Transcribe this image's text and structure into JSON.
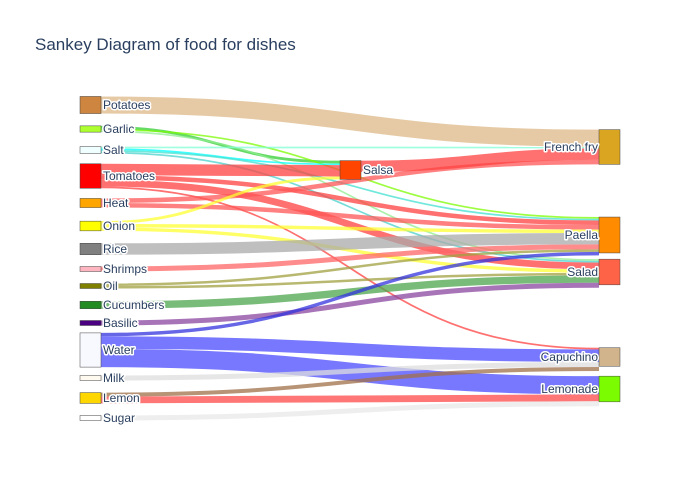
{
  "chart_data": {
    "type": "sankey",
    "title": "Sankey Diagram of food for dishes",
    "nodes": [
      {
        "id": "potatoes",
        "label": "Potatoes",
        "color": "#CD853F"
      },
      {
        "id": "garlic",
        "label": "Garlic",
        "color": "#ADFF2F"
      },
      {
        "id": "salt",
        "label": "Salt",
        "color": "#F0FFFF"
      },
      {
        "id": "tomatoes",
        "label": "Tomatoes",
        "color": "#FF0000"
      },
      {
        "id": "heat",
        "label": "Heat",
        "color": "#FFA500"
      },
      {
        "id": "onion",
        "label": "Onion",
        "color": "#FFFF00"
      },
      {
        "id": "rice",
        "label": "Rice",
        "color": "#808080"
      },
      {
        "id": "shrimps",
        "label": "Shrimps",
        "color": "#FFB6C1"
      },
      {
        "id": "oil",
        "label": "Oil",
        "color": "#808000"
      },
      {
        "id": "cucumbers",
        "label": "Cucumbers",
        "color": "#228B22"
      },
      {
        "id": "basilic",
        "label": "Basilic",
        "color": "#4B0082"
      },
      {
        "id": "water",
        "label": "Water",
        "color": "#F8F8FF"
      },
      {
        "id": "milk",
        "label": "Milk",
        "color": "#FFFAF0"
      },
      {
        "id": "lemon",
        "label": "Lemon",
        "color": "#FFD700"
      },
      {
        "id": "sugar",
        "label": "Sugar",
        "color": "#FFFFFF"
      },
      {
        "id": "salsa",
        "label": "Salsa",
        "color": "#FF4500"
      },
      {
        "id": "frenchfry",
        "label": "French fry",
        "color": "#DAA520"
      },
      {
        "id": "paella",
        "label": "Paella",
        "color": "#FF8C00"
      },
      {
        "id": "salad",
        "label": "Salad",
        "color": "#FF6347"
      },
      {
        "id": "capuchino",
        "label": "Capuchino",
        "color": "#D2B48C"
      },
      {
        "id": "lemonade",
        "label": "Lemonade",
        "color": "#7CFC00"
      }
    ],
    "links": [
      {
        "source": "potatoes",
        "target": "frenchfry",
        "value": 3,
        "color": "#DEB887"
      },
      {
        "source": "garlic",
        "target": "salsa",
        "value": 0.5,
        "color": "#32CD32"
      },
      {
        "source": "garlic",
        "target": "paella",
        "value": 0.3,
        "color": "#7CFC00"
      },
      {
        "source": "garlic",
        "target": "salad",
        "value": 0.3,
        "color": "#90EE90"
      },
      {
        "source": "salt",
        "target": "frenchfry",
        "value": 0.3,
        "color": "#7FFFD4"
      },
      {
        "source": "salt",
        "target": "salsa",
        "value": 0.3,
        "color": "#00FFFF"
      },
      {
        "source": "salt",
        "target": "paella",
        "value": 0.3,
        "color": "#40E0D0"
      },
      {
        "source": "salt",
        "target": "salad",
        "value": 0.3,
        "color": "#48D1CC"
      },
      {
        "source": "tomatoes",
        "target": "salsa",
        "value": 2,
        "color": "#FF4040"
      },
      {
        "source": "tomatoes",
        "target": "paella",
        "value": 0.8,
        "color": "#FF4040"
      },
      {
        "source": "tomatoes",
        "target": "salad",
        "value": 1.2,
        "color": "#FF4040"
      },
      {
        "source": "tomatoes",
        "target": "capuchino",
        "value": 0.3,
        "color": "#FF4040"
      },
      {
        "source": "heat",
        "target": "frenchfry",
        "value": 0.8,
        "color": "#FF5555"
      },
      {
        "source": "heat",
        "target": "paella",
        "value": 0.8,
        "color": "#FF5555"
      },
      {
        "source": "onion",
        "target": "salsa",
        "value": 0.5,
        "color": "#FFFF33"
      },
      {
        "source": "onion",
        "target": "paella",
        "value": 0.6,
        "color": "#FFFF33"
      },
      {
        "source": "onion",
        "target": "salad",
        "value": 0.6,
        "color": "#FFFF33"
      },
      {
        "source": "rice",
        "target": "paella",
        "value": 2,
        "color": "#A9A9A9"
      },
      {
        "source": "shrimps",
        "target": "paella",
        "value": 0.6,
        "color": "#FF6666"
      },
      {
        "source": "oil",
        "target": "paella",
        "value": 0.3,
        "color": "#A0A040"
      },
      {
        "source": "oil",
        "target": "salad",
        "value": 0.3,
        "color": "#A0A040"
      },
      {
        "source": "cucumbers",
        "target": "salad",
        "value": 1.3,
        "color": "#4CA64C"
      },
      {
        "source": "basilic",
        "target": "salad",
        "value": 0.5,
        "color": "#8B45A0"
      },
      {
        "source": "water",
        "target": "paella",
        "value": 0.6,
        "color": "#3333DD"
      },
      {
        "source": "water",
        "target": "capuchino",
        "value": 2.2,
        "color": "#4B4BFF"
      },
      {
        "source": "water",
        "target": "lemonade",
        "value": 3.2,
        "color": "#4B4BFF"
      },
      {
        "source": "milk",
        "target": "capuchino",
        "value": 0.05,
        "color": "#DDDDDD"
      },
      {
        "source": "lemon",
        "target": "capuchino",
        "value": 0.7,
        "color": "#A0704A"
      },
      {
        "source": "lemon",
        "target": "lemonade",
        "value": 1.2,
        "color": "#FF4848"
      },
      {
        "source": "sugar",
        "target": "lemonade",
        "value": 0.1,
        "color": "#E8E8E8"
      },
      {
        "source": "salsa",
        "target": "frenchfry",
        "value": 2,
        "color": "#FF4040"
      }
    ]
  }
}
